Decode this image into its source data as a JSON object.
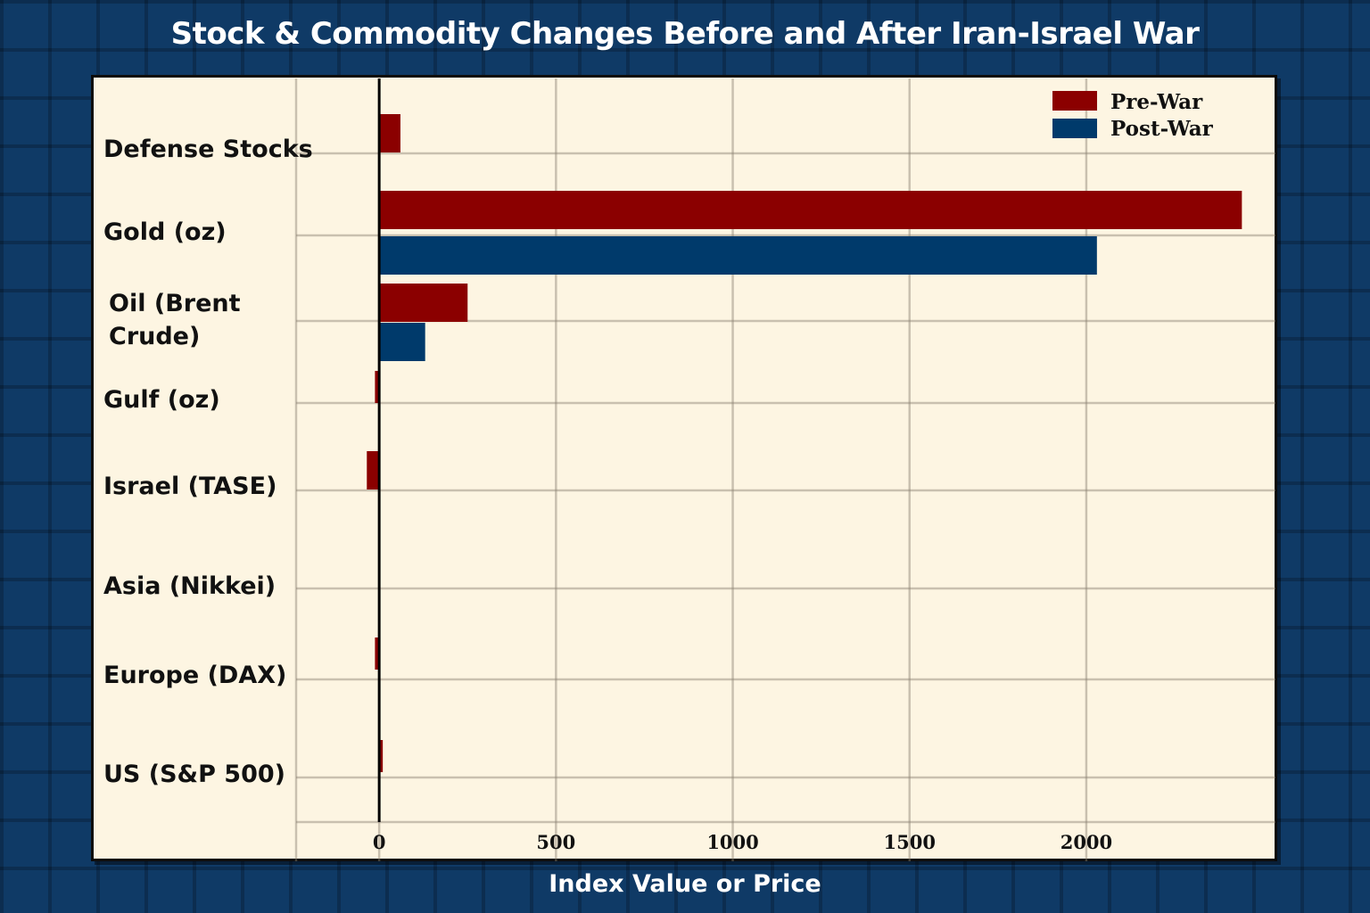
{
  "chart_data": {
    "type": "bar",
    "orientation": "horizontal",
    "title": "Stock & Commodity Changes Before and After Iran-Israel War",
    "xlabel": "Index Value or Price",
    "ylabel": "",
    "categories": [
      "Defense Stocks",
      "Gold (oz)",
      "Oil (Brent Crude)",
      "Gulf (oz)",
      "Israel (TASE)",
      "Asia (Nikkei)",
      "Europe (DAX)",
      "US (S&P 500)"
    ],
    "series": [
      {
        "name": "Pre-War",
        "color": "#8b0000",
        "values": [
          60,
          2440,
          250,
          -12,
          -35,
          0,
          -12,
          8
        ]
      },
      {
        "name": "Post-War",
        "color": "#003a6b",
        "values": [
          null,
          2030,
          130,
          null,
          null,
          null,
          null,
          null
        ]
      }
    ],
    "xlim": [
      -235,
      2535
    ],
    "xticks": [
      0,
      500,
      1000,
      1500,
      2000
    ],
    "xtick_labels": [
      "0",
      "500",
      "1000",
      "1500",
      "2000"
    ],
    "grid": true,
    "legend_position": "top-right"
  }
}
